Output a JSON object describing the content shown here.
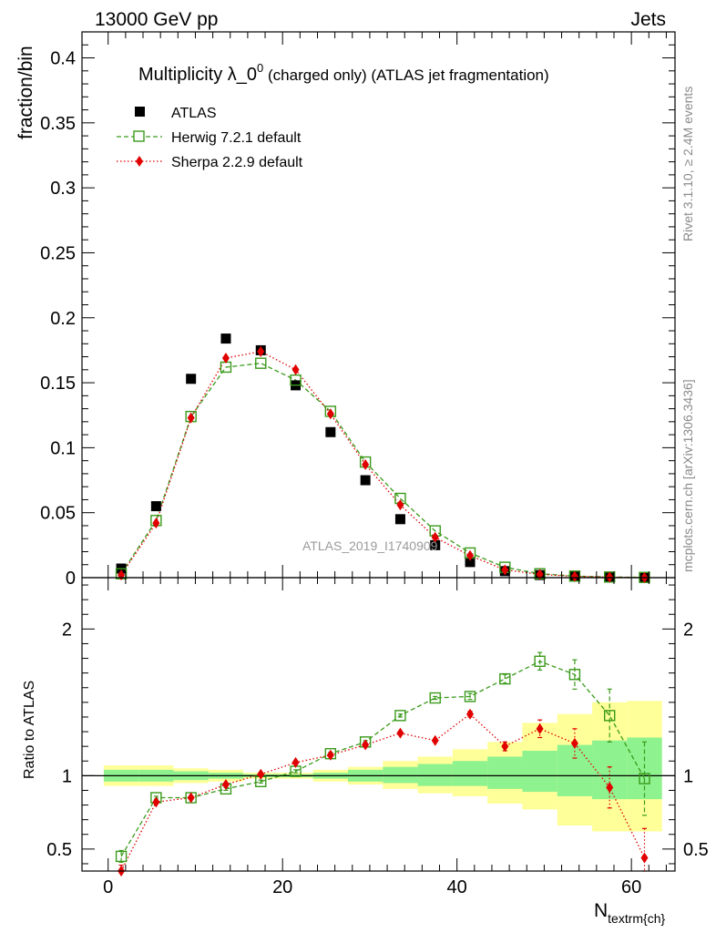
{
  "header": {
    "left": "13000 GeV pp",
    "right": "Jets"
  },
  "side_labels": {
    "rivet": "Rivet 3.1.10, ≥ 2.4M events",
    "mcplots": "mcplots.cern.ch [arXiv:1306.3436]"
  },
  "chart_data": [
    {
      "type": "scatter",
      "panel": "main",
      "title_main": "Multiplicity λ_0",
      "title_sup": "0",
      "title_rest": " (charged only) (ATLAS jet fragmentation)",
      "ylabel": "fraction/bin",
      "watermark": "ATLAS_2019_I1740909",
      "ylim": [
        0,
        0.42
      ],
      "yticks": [
        0,
        0.05,
        0.1,
        0.15,
        0.2,
        0.25,
        0.3,
        0.35,
        0.4
      ],
      "ytick_labels": [
        "0",
        "0.05",
        "0.1",
        "0.15",
        "0.2",
        "0.25",
        "0.3",
        "0.35",
        "0.4"
      ],
      "x": [
        1.5,
        5.5,
        9.5,
        13.5,
        17.5,
        21.5,
        25.5,
        29.5,
        33.5,
        37.5,
        41.5,
        45.5,
        49.5,
        53.5,
        57.5,
        61.5
      ],
      "legend_position": "top-left",
      "series": [
        {
          "name": "ATLAS",
          "color": "#000000",
          "marker": "filled-square",
          "values": [
            0.007,
            0.055,
            0.153,
            0.184,
            0.175,
            0.148,
            0.112,
            0.075,
            0.045,
            0.025,
            0.012,
            0.005,
            0.002,
            0.0008,
            0.0003,
            0.0001
          ]
        },
        {
          "name": "Herwig 7.2.1 default",
          "color": "#3a9a1a",
          "marker": "open-square",
          "line": "dashed",
          "values": [
            0.003,
            0.044,
            0.124,
            0.162,
            0.165,
            0.152,
            0.128,
            0.089,
            0.061,
            0.036,
            0.019,
            0.008,
            0.003,
            0.0012,
            0.0005,
            0.0002
          ]
        },
        {
          "name": "Sherpa 2.2.9 default",
          "color": "#e00000",
          "marker": "filled-diamond",
          "line": "dotted",
          "values": [
            0.002,
            0.042,
            0.123,
            0.169,
            0.174,
            0.16,
            0.126,
            0.087,
            0.056,
            0.031,
            0.017,
            0.006,
            0.0025,
            0.001,
            0.0004,
            0.0001
          ]
        }
      ]
    },
    {
      "type": "line",
      "panel": "ratio",
      "ylabel": "Ratio to ATLAS",
      "xlabel": "N",
      "xlabel_sub": "textrm{ch}",
      "xlim": [
        -3,
        65
      ],
      "xticks": [
        0,
        20,
        40,
        60
      ],
      "xtick_labels": [
        "0",
        "20",
        "40",
        "60"
      ],
      "ylim": [
        0.35,
        2.35
      ],
      "yticks": [
        0.5,
        1,
        2
      ],
      "ytick_labels": [
        "0.5",
        "1",
        "2"
      ],
      "x": [
        1.5,
        5.5,
        9.5,
        13.5,
        17.5,
        21.5,
        25.5,
        29.5,
        33.5,
        37.5,
        41.5,
        45.5,
        49.5,
        53.5,
        57.5,
        61.5
      ],
      "bin_edges": [
        -0.5,
        3.5,
        7.5,
        11.5,
        15.5,
        19.5,
        23.5,
        27.5,
        31.5,
        35.5,
        39.5,
        43.5,
        47.5,
        51.5,
        55.5,
        59.5,
        63.5
      ],
      "uncertainty_bands": {
        "total_color": "#ffff99",
        "stat_color": "#8ef28e",
        "total_lower": [
          0.93,
          0.93,
          0.95,
          0.96,
          0.98,
          0.98,
          0.96,
          0.94,
          0.91,
          0.88,
          0.86,
          0.81,
          0.77,
          0.66,
          0.62,
          0.62
        ],
        "total_upper": [
          1.07,
          1.07,
          1.05,
          1.04,
          1.02,
          1.02,
          1.04,
          1.06,
          1.1,
          1.13,
          1.18,
          1.23,
          1.36,
          1.42,
          1.5,
          1.51
        ],
        "stat_lower": [
          0.96,
          0.96,
          0.97,
          0.98,
          0.99,
          0.99,
          0.98,
          0.96,
          0.95,
          0.93,
          0.93,
          0.91,
          0.89,
          0.86,
          0.84,
          0.84
        ],
        "stat_upper": [
          1.04,
          1.04,
          1.03,
          1.02,
          1.01,
          1.01,
          1.02,
          1.04,
          1.06,
          1.08,
          1.1,
          1.13,
          1.17,
          1.21,
          1.24,
          1.26
        ]
      },
      "reference_line": 1,
      "series": [
        {
          "name": "Herwig 7.2.1 default",
          "color": "#3a9a1a",
          "marker": "open-square",
          "line": "dashed",
          "values": [
            0.45,
            0.85,
            0.85,
            0.91,
            0.96,
            1.03,
            1.15,
            1.23,
            1.41,
            1.53,
            1.54,
            1.66,
            1.78,
            1.69,
            1.41,
            0.98
          ],
          "errors": [
            0.04,
            0.01,
            0.01,
            0.01,
            0.01,
            0.01,
            0.01,
            0.01,
            0.01,
            0.01,
            0.02,
            0.03,
            0.06,
            0.1,
            0.18,
            0.25
          ]
        },
        {
          "name": "Sherpa 2.2.9 default",
          "color": "#e00000",
          "marker": "filled-diamond",
          "line": "dotted",
          "values": [
            0.35,
            0.82,
            0.85,
            0.94,
            1.01,
            1.09,
            1.14,
            1.21,
            1.29,
            1.24,
            1.42,
            1.2,
            1.32,
            1.22,
            0.92,
            0.44
          ],
          "errors": [
            0.04,
            0.01,
            0.01,
            0.01,
            0.01,
            0.01,
            0.01,
            0.01,
            0.01,
            0.01,
            0.02,
            0.03,
            0.06,
            0.1,
            0.14,
            0.2
          ]
        }
      ]
    }
  ]
}
